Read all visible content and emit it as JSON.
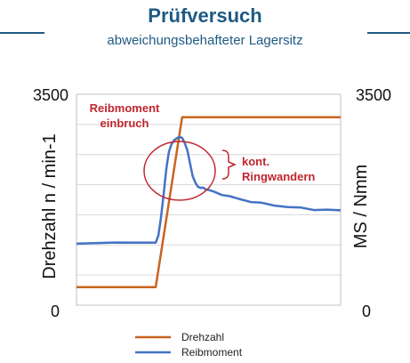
{
  "header": {
    "title": "Prüfversuch",
    "subtitle": "abweichungsbehafteter  Lagersitz"
  },
  "colors": {
    "accent": "#1f5a84",
    "drehzahl": "#c8641e",
    "reibmoment": "#4472c4",
    "annotation": "#c0262d",
    "grid": "#d9d9d9"
  },
  "chart_data": {
    "type": "line",
    "ylabel_left": "Drehzahl n / min-1",
    "ylabel_right": "MS / Nmm",
    "y_ticks_left": [
      "3500",
      "0"
    ],
    "y_ticks_right": [
      "3500",
      "0"
    ],
    "ylim": [
      0,
      3500
    ],
    "xlim": [
      0,
      100
    ],
    "grid": "horizontal",
    "legend_position": "bottom",
    "series": [
      {
        "name": "Drehzahl",
        "color": "#c8641e",
        "x": [
          0,
          30,
          40,
          100
        ],
        "y": [
          300,
          300,
          3120,
          3120
        ]
      },
      {
        "name": "Reibmoment",
        "color": "#4472c4",
        "x": [
          0,
          15,
          30,
          31,
          32,
          33,
          34,
          35,
          36,
          37,
          38,
          39,
          40,
          41,
          42,
          43,
          44,
          45,
          46,
          47,
          48,
          49,
          50,
          52,
          55,
          58,
          62,
          66,
          70,
          75,
          80,
          85,
          90,
          95,
          100
        ],
        "y": [
          1020,
          1030,
          1050,
          1150,
          1450,
          1850,
          2250,
          2550,
          2680,
          2730,
          2780,
          2790,
          2770,
          2700,
          2560,
          2350,
          2150,
          2020,
          1970,
          1950,
          1940,
          1930,
          1910,
          1880,
          1840,
          1800,
          1760,
          1720,
          1690,
          1660,
          1630,
          1610,
          1590,
          1580,
          1570
        ]
      }
    ],
    "annotations": [
      {
        "label": "Reibmoment\neinbruch"
      },
      {
        "label": "kont.\nRingwandern"
      }
    ]
  }
}
